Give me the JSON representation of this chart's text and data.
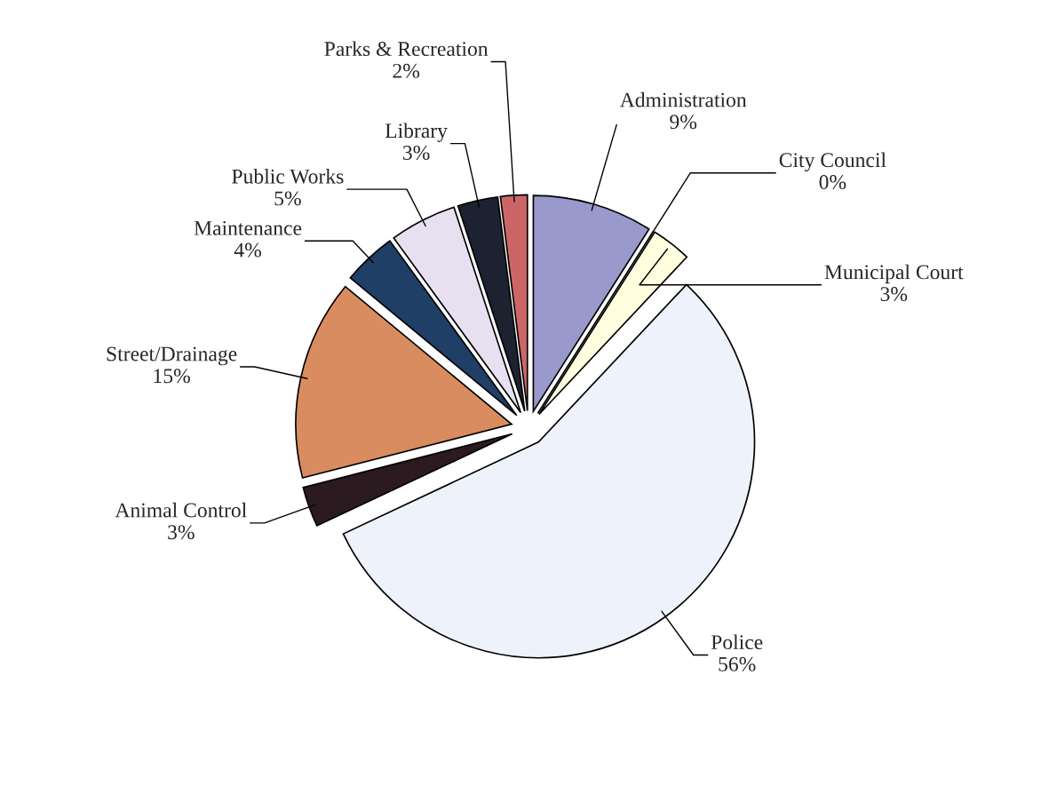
{
  "chart_data": {
    "type": "pie",
    "categories": [
      "Administration",
      "City Council",
      "Municipal Court",
      "Police",
      "Animal Control",
      "Street/Drainage",
      "Maintenance",
      "Public Works",
      "Library",
      "Parks & Recreation"
    ],
    "values": [
      9,
      0,
      3,
      56,
      3,
      15,
      4,
      5,
      3,
      2
    ],
    "colors": [
      "#9999cc",
      "#1f2a44",
      "#ffffe0",
      "#eef2fa",
      "#2b1a1f",
      "#d98c5f",
      "#1f3f66",
      "#e6e0f0",
      "#1c2230",
      "#cc6666"
    ],
    "value_labels": [
      "9%",
      "0%",
      "3%",
      "56%",
      "3%",
      "15%",
      "4%",
      "5%",
      "3%",
      "2%"
    ],
    "legend": false
  }
}
